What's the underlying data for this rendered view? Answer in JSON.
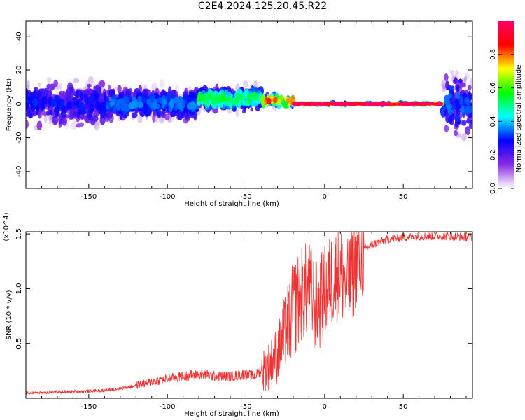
{
  "title": "C2E4.2024.125.20.45.R22",
  "chart_data": [
    {
      "type": "heatmap",
      "xlabel": "Height of straight line (km)",
      "ylabel": "Frequency (Hz)",
      "xlim": [
        -190,
        94
      ],
      "ylim": [
        -50,
        49
      ],
      "xticks": [
        "-150",
        "-100",
        "-50",
        "0",
        "50"
      ],
      "xtick_values": [
        -150,
        -100,
        -50,
        0,
        50
      ],
      "yticks": [
        "-40",
        "-20",
        "0",
        "20",
        "40"
      ],
      "ytick_values": [
        -40,
        -20,
        0,
        20,
        40
      ],
      "colorbar": {
        "label": "Normalized spectral amplitude",
        "range": [
          0,
          1
        ],
        "ticks": [
          "0.0",
          "0.2",
          "0.4",
          "0.6",
          "0.8"
        ],
        "tick_values": [
          0.0,
          0.2,
          0.4,
          0.6,
          0.8
        ],
        "colors": [
          "#ffffff",
          "#8a2be2",
          "#0000ff",
          "#00ffff",
          "#00ff00",
          "#ffff00",
          "#ff0000",
          "#ff0066"
        ]
      },
      "regions": [
        {
          "x": [
            -190,
            -140
          ],
          "freq_center": 0,
          "freq_spread": 14,
          "amplitude": 0.25
        },
        {
          "x": [
            -140,
            -80
          ],
          "freq_center": 0,
          "freq_spread": 10,
          "amplitude": 0.3
        },
        {
          "x": [
            -80,
            -40
          ],
          "freq_center": 3,
          "freq_spread": 7,
          "amplitude": 0.45
        },
        {
          "x": [
            -40,
            -20
          ],
          "freq_center": 2,
          "freq_spread": 3,
          "amplitude": 0.7
        },
        {
          "x": [
            -20,
            75
          ],
          "freq_center": 0,
          "freq_spread": 1,
          "amplitude": 0.9
        },
        {
          "x": [
            75,
            94
          ],
          "freq_center": 0,
          "freq_spread": 20,
          "amplitude": 0.3
        }
      ]
    },
    {
      "type": "line",
      "xlabel": "Height of straight line (km)",
      "ylabel": "SNR (10 * v/v)",
      "y_multiplier": "(x10^4)",
      "xlim": [
        -190,
        94
      ],
      "ylim": [
        0,
        1.52
      ],
      "xticks": [
        "-150",
        "-100",
        "-50",
        "0",
        "50"
      ],
      "xtick_values": [
        -150,
        -100,
        -50,
        0,
        50
      ],
      "yticks": [
        "0.5",
        "1.0",
        "1.5"
      ],
      "ytick_values": [
        0.5,
        1.0,
        1.5
      ],
      "color": "#ee3333",
      "series": [
        {
          "x": [
            -190,
            -160,
            -140,
            -125,
            -110,
            -100,
            -90,
            -80,
            -70,
            -60,
            -50,
            -45,
            -40,
            -35,
            -30,
            -25,
            -20,
            -15,
            -10,
            -5,
            0,
            5,
            10,
            15,
            20,
            25,
            30,
            40,
            50,
            60,
            70,
            80,
            94
          ],
          "values": [
            0.05,
            0.06,
            0.07,
            0.1,
            0.15,
            0.18,
            0.2,
            0.22,
            0.2,
            0.2,
            0.22,
            0.2,
            0.25,
            0.3,
            0.4,
            0.6,
            0.8,
            0.95,
            1.0,
            0.8,
            0.95,
            1.1,
            1.15,
            1.0,
            1.25,
            1.35,
            1.4,
            1.45,
            1.47,
            1.48,
            1.48,
            1.48,
            1.47
          ]
        }
      ]
    }
  ]
}
